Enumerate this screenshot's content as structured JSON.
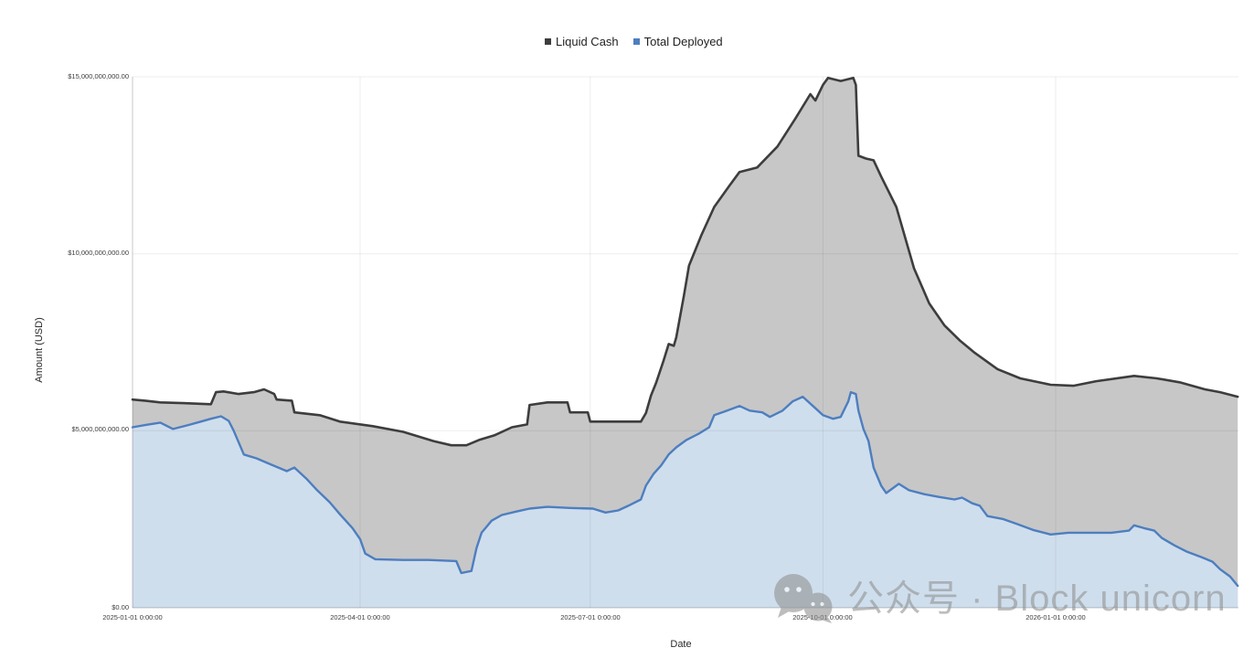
{
  "legend": {
    "items": [
      {
        "label": "Liquid Cash",
        "color": "#3d3d3d"
      },
      {
        "label": "Total Deployed",
        "color": "#4d7ebf"
      }
    ]
  },
  "axes": {
    "y_title": "Amount (USD)",
    "x_title": "Date"
  },
  "watermark": {
    "icon": "wechat-icon",
    "text": "公众号 · Block unicorn",
    "color": "#8f8f8f"
  },
  "chart_data": {
    "type": "area",
    "title": "",
    "xlabel": "Date",
    "ylabel": "Amount (USD)",
    "legend_position": "top-center",
    "grid": true,
    "x_unit": "days since 2025-01-01",
    "y_unit": "billion USD",
    "ylim_billions": [
      0,
      15
    ],
    "yticks": [
      {
        "v": 0,
        "label": "$0.00"
      },
      {
        "v": 5,
        "label": "$5,000,000,000.00"
      },
      {
        "v": 10,
        "label": "$10,000,000,000.00"
      },
      {
        "v": 15,
        "label": "$15,000,000,000.00"
      }
    ],
    "xticks": [
      {
        "d": 0,
        "label": "2025-01-01 0:00:00"
      },
      {
        "d": 90,
        "label": "2025-04-01 0:00:00"
      },
      {
        "d": 181,
        "label": "2025-07-01 0:00:00"
      },
      {
        "d": 273,
        "label": "2025-10-01 0:00:00"
      },
      {
        "d": 365,
        "label": "2026-01-01 0:00:00"
      }
    ],
    "series": [
      {
        "name": "Liquid Cash",
        "line_color": "#3d3d3d",
        "fill_color": "#c7c7c7",
        "points": [
          [
            0,
            5.88
          ],
          [
            5,
            5.85
          ],
          [
            11,
            5.8
          ],
          [
            20,
            5.78
          ],
          [
            31,
            5.75
          ],
          [
            33,
            6.09
          ],
          [
            36,
            6.11
          ],
          [
            42,
            6.04
          ],
          [
            48,
            6.09
          ],
          [
            52,
            6.17
          ],
          [
            56,
            6.04
          ],
          [
            57,
            5.88
          ],
          [
            63,
            5.85
          ],
          [
            64,
            5.52
          ],
          [
            74,
            5.44
          ],
          [
            82,
            5.26
          ],
          [
            95,
            5.13
          ],
          [
            107,
            4.97
          ],
          [
            119,
            4.71
          ],
          [
            126,
            4.59
          ],
          [
            132,
            4.59
          ],
          [
            137,
            4.74
          ],
          [
            143,
            4.87
          ],
          [
            150,
            5.1
          ],
          [
            156,
            5.18
          ],
          [
            157,
            5.73
          ],
          [
            164,
            5.8
          ],
          [
            172,
            5.8
          ],
          [
            173,
            5.52
          ],
          [
            180,
            5.52
          ],
          [
            181,
            5.26
          ],
          [
            195,
            5.26
          ],
          [
            201,
            5.26
          ],
          [
            203,
            5.5
          ],
          [
            205,
            6.0
          ],
          [
            207,
            6.35
          ],
          [
            210,
            6.99
          ],
          [
            212,
            7.45
          ],
          [
            214,
            7.4
          ],
          [
            215,
            7.64
          ],
          [
            218,
            8.81
          ],
          [
            220,
            9.66
          ],
          [
            225,
            10.54
          ],
          [
            230,
            11.32
          ],
          [
            236,
            11.92
          ],
          [
            240,
            12.31
          ],
          [
            247,
            12.44
          ],
          [
            255,
            13.03
          ],
          [
            262,
            13.81
          ],
          [
            268,
            14.51
          ],
          [
            270,
            14.33
          ],
          [
            273,
            14.77
          ],
          [
            275,
            14.97
          ],
          [
            280,
            14.88
          ],
          [
            285,
            14.97
          ],
          [
            286,
            14.77
          ],
          [
            287,
            12.77
          ],
          [
            290,
            12.69
          ],
          [
            293,
            12.64
          ],
          [
            296,
            12.18
          ],
          [
            302,
            11.32
          ],
          [
            309,
            9.59
          ],
          [
            315,
            8.6
          ],
          [
            321,
            7.98
          ],
          [
            327,
            7.56
          ],
          [
            333,
            7.2
          ],
          [
            342,
            6.74
          ],
          [
            351,
            6.48
          ],
          [
            363,
            6.3
          ],
          [
            372,
            6.27
          ],
          [
            381,
            6.4
          ],
          [
            396,
            6.55
          ],
          [
            405,
            6.48
          ],
          [
            414,
            6.37
          ],
          [
            424,
            6.17
          ],
          [
            430,
            6.09
          ],
          [
            437,
            5.96
          ]
        ]
      },
      {
        "name": "Total Deployed",
        "line_color": "#4d7ebf",
        "fill_color": "#cfdeed",
        "points": [
          [
            0,
            5.1
          ],
          [
            5,
            5.16
          ],
          [
            11,
            5.23
          ],
          [
            16,
            5.05
          ],
          [
            22,
            5.16
          ],
          [
            27,
            5.26
          ],
          [
            31,
            5.34
          ],
          [
            35,
            5.41
          ],
          [
            38,
            5.28
          ],
          [
            40,
            5.0
          ],
          [
            44,
            4.33
          ],
          [
            49,
            4.22
          ],
          [
            54,
            4.07
          ],
          [
            61,
            3.86
          ],
          [
            64,
            3.96
          ],
          [
            69,
            3.63
          ],
          [
            73,
            3.32
          ],
          [
            78,
            2.98
          ],
          [
            82,
            2.64
          ],
          [
            87,
            2.25
          ],
          [
            90,
            1.94
          ],
          [
            92,
            1.53
          ],
          [
            96,
            1.37
          ],
          [
            107,
            1.35
          ],
          [
            117,
            1.35
          ],
          [
            128,
            1.32
          ],
          [
            130,
            0.98
          ],
          [
            134,
            1.04
          ],
          [
            136,
            1.68
          ],
          [
            138,
            2.12
          ],
          [
            142,
            2.46
          ],
          [
            146,
            2.62
          ],
          [
            152,
            2.72
          ],
          [
            157,
            2.8
          ],
          [
            164,
            2.85
          ],
          [
            173,
            2.82
          ],
          [
            182,
            2.8
          ],
          [
            187,
            2.69
          ],
          [
            192,
            2.75
          ],
          [
            196,
            2.88
          ],
          [
            201,
            3.06
          ],
          [
            203,
            3.45
          ],
          [
            206,
            3.78
          ],
          [
            209,
            4.02
          ],
          [
            212,
            4.33
          ],
          [
            215,
            4.53
          ],
          [
            219,
            4.74
          ],
          [
            224,
            4.92
          ],
          [
            228,
            5.1
          ],
          [
            230,
            5.44
          ],
          [
            234,
            5.54
          ],
          [
            240,
            5.7
          ],
          [
            244,
            5.57
          ],
          [
            249,
            5.52
          ],
          [
            252,
            5.39
          ],
          [
            257,
            5.57
          ],
          [
            261,
            5.83
          ],
          [
            265,
            5.96
          ],
          [
            269,
            5.7
          ],
          [
            273,
            5.44
          ],
          [
            277,
            5.34
          ],
          [
            280,
            5.39
          ],
          [
            283,
            5.83
          ],
          [
            284,
            6.09
          ],
          [
            286,
            6.04
          ],
          [
            287,
            5.57
          ],
          [
            289,
            5.05
          ],
          [
            291,
            4.71
          ],
          [
            293,
            3.96
          ],
          [
            296,
            3.45
          ],
          [
            298,
            3.24
          ],
          [
            303,
            3.5
          ],
          [
            307,
            3.32
          ],
          [
            313,
            3.21
          ],
          [
            319,
            3.13
          ],
          [
            325,
            3.06
          ],
          [
            328,
            3.11
          ],
          [
            332,
            2.95
          ],
          [
            335,
            2.88
          ],
          [
            338,
            2.59
          ],
          [
            344,
            2.51
          ],
          [
            350,
            2.36
          ],
          [
            356,
            2.2
          ],
          [
            363,
            2.07
          ],
          [
            370,
            2.12
          ],
          [
            380,
            2.12
          ],
          [
            387,
            2.12
          ],
          [
            394,
            2.18
          ],
          [
            396,
            2.33
          ],
          [
            400,
            2.25
          ],
          [
            404,
            2.18
          ],
          [
            407,
            1.97
          ],
          [
            412,
            1.76
          ],
          [
            417,
            1.58
          ],
          [
            423,
            1.42
          ],
          [
            427,
            1.3
          ],
          [
            430,
            1.09
          ],
          [
            434,
            0.88
          ],
          [
            437,
            0.62
          ]
        ]
      }
    ]
  }
}
